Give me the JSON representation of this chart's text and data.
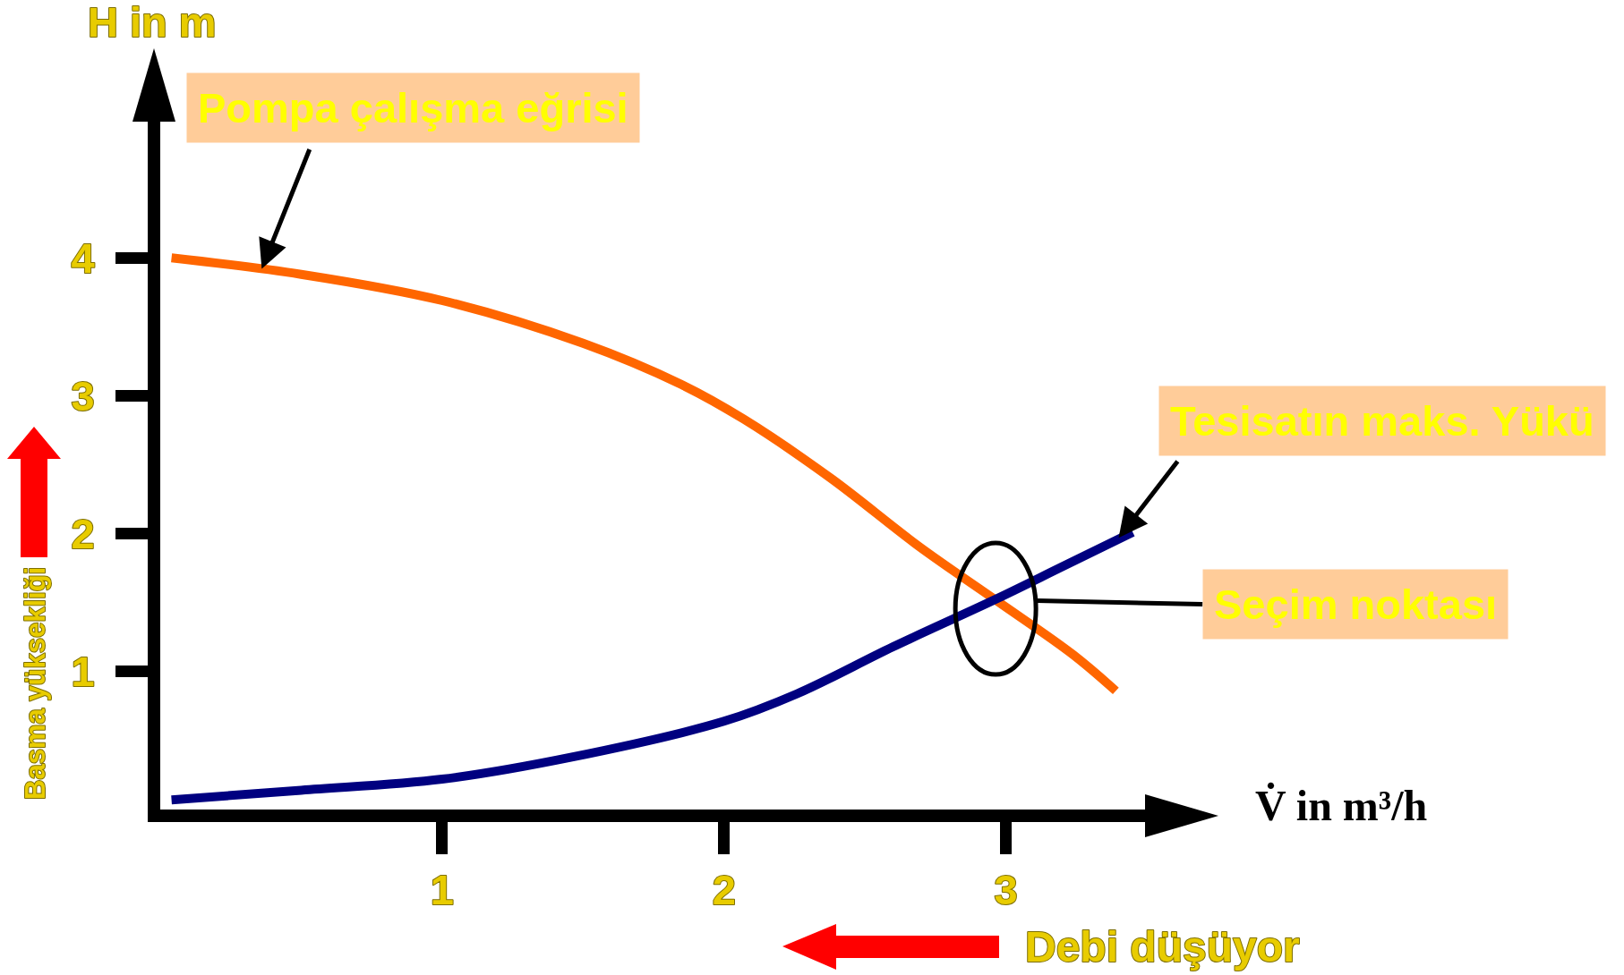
{
  "chart_data": {
    "type": "line",
    "xlabel": "V̇ in m³/h",
    "ylabel": "H in m",
    "series": [
      {
        "color": "#ff6600",
        "x": [
          0.04,
          0.5,
          1.0,
          1.5,
          1.85,
          2.07,
          2.38,
          2.69,
          2.97,
          3.24,
          3.39
        ],
        "values": [
          4.0,
          3.88,
          3.69,
          3.38,
          3.08,
          2.83,
          2.4,
          1.91,
          1.51,
          1.12,
          0.86
        ]
      },
      {
        "color": "#000080",
        "x": [
          0.04,
          0.5,
          1.0,
          1.46,
          2.0,
          2.26,
          2.6,
          2.97,
          3.2,
          3.45
        ],
        "values": [
          0.07,
          0.14,
          0.22,
          0.38,
          0.64,
          0.84,
          1.18,
          1.53,
          1.76,
          2.01
        ]
      }
    ],
    "xlim": [
      0,
      3.5
    ],
    "xticks": [
      1,
      2,
      3
    ],
    "ylim": [
      0,
      5
    ],
    "yticks": [
      1,
      2,
      3,
      4
    ],
    "line_style": "solid",
    "annotations": [
      {
        "text": "Pompa çalışma eğrisi",
        "x": 0.36,
        "y": 3.92
      },
      {
        "text": "Tesisatın maks. Yükü",
        "x": 3.4,
        "y": 1.97
      },
      {
        "text": "Seçim noktası",
        "x": 2.97,
        "y": 1.52
      },
      "Basma yüksekliği",
      "Debi düşüyor"
    ]
  }
}
